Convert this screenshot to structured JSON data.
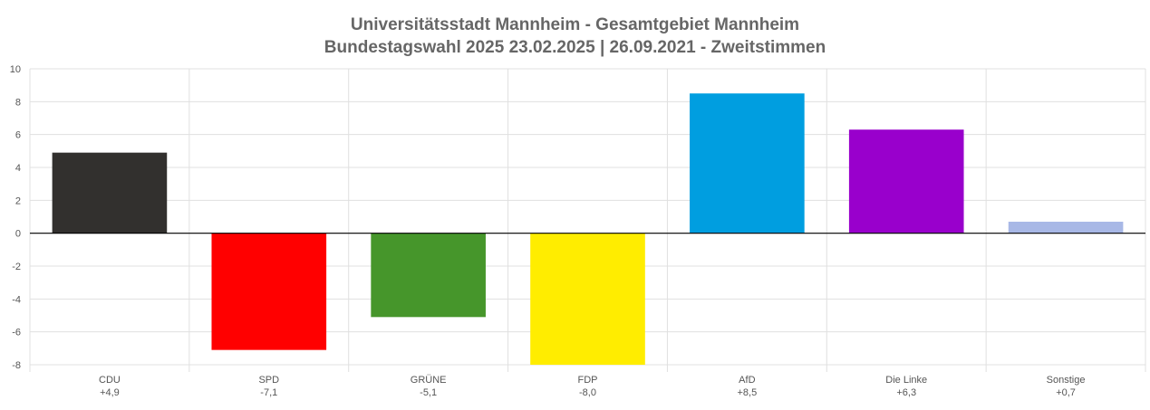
{
  "chart_data": {
    "type": "bar",
    "title": "Universitätsstadt Mannheim - Gesamtgebiet Mannheim",
    "subtitle": "Bundestagswahl 2025 23.02.2025  | 26.09.2021 - Zweitstimmen",
    "xlabel": "",
    "ylabel": "",
    "ylim": [
      -8,
      10
    ],
    "yticks": [
      10,
      8,
      6,
      4,
      2,
      0,
      -2,
      -4,
      -6,
      -8
    ],
    "grid": true,
    "legend": "none",
    "categories": [
      "CDU",
      "SPD",
      "GRÜNE",
      "FDP",
      "AfD",
      "Die Linke",
      "Sonstige"
    ],
    "value_labels": [
      "+4,9",
      "-7,1",
      "-5,1",
      "-8,0",
      "+8,5",
      "+6,3",
      "+0,7"
    ],
    "values": [
      4.9,
      -7.1,
      -5.1,
      -8.0,
      8.5,
      6.3,
      0.7
    ],
    "colors": [
      "#32302e",
      "#ff0000",
      "#46962b",
      "#ffed00",
      "#009ee0",
      "#9900cc",
      "#a8b8e6"
    ]
  }
}
